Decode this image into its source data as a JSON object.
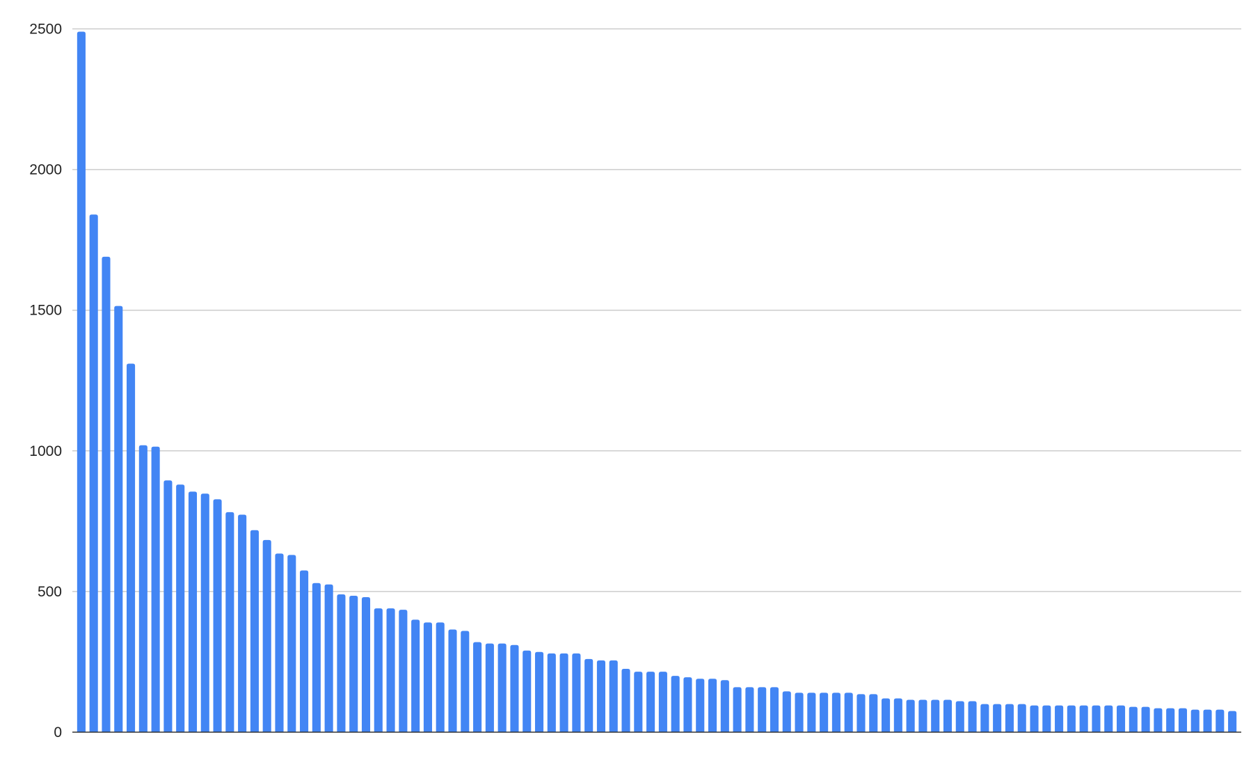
{
  "chart_data": {
    "type": "bar",
    "title": "",
    "xlabel": "",
    "ylabel": "",
    "ylim": [
      0,
      2500
    ],
    "yticks": [
      "0",
      "500",
      "1000",
      "1500",
      "2000",
      "2500"
    ],
    "grid": true,
    "legend": "none",
    "bar_color": "#4285F4",
    "values": [
      2490,
      1840,
      1690,
      1515,
      1310,
      1020,
      1015,
      895,
      880,
      855,
      848,
      828,
      782,
      773,
      718,
      683,
      635,
      630,
      575,
      530,
      525,
      490,
      485,
      480,
      440,
      440,
      435,
      400,
      390,
      390,
      365,
      360,
      320,
      315,
      315,
      310,
      290,
      285,
      280,
      280,
      280,
      260,
      255,
      255,
      225,
      215,
      215,
      215,
      200,
      195,
      190,
      190,
      185,
      160,
      160,
      160,
      160,
      145,
      140,
      140,
      140,
      140,
      140,
      135,
      135,
      120,
      120,
      115,
      115,
      115,
      115,
      110,
      110,
      100,
      100,
      100,
      100,
      95,
      95,
      95,
      95,
      95,
      95,
      95,
      95,
      90,
      90,
      85,
      85,
      85,
      80,
      80,
      80,
      75
    ]
  }
}
